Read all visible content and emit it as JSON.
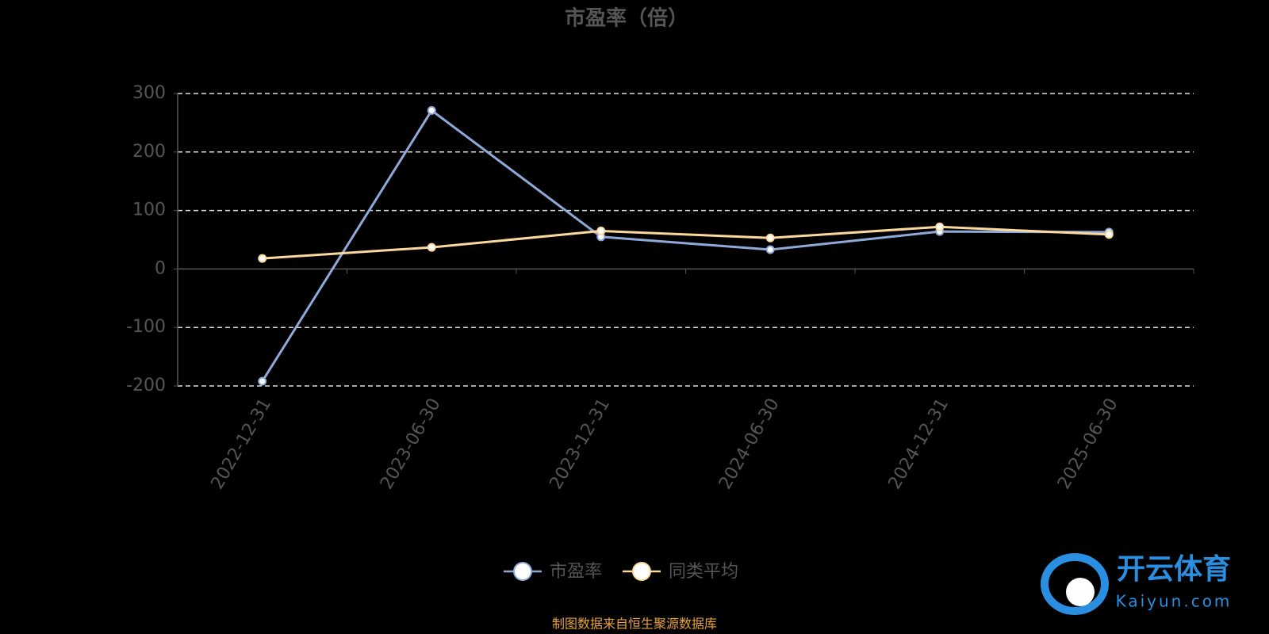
{
  "chart_data": {
    "type": "line",
    "title": "市盈率（倍）",
    "categories": [
      "2022-12-31",
      "2023-06-30",
      "2023-12-31",
      "2024-06-30",
      "2024-12-31",
      "2025-06-30"
    ],
    "series": [
      {
        "name": "市盈率",
        "color": "#8fa9d9",
        "values": [
          -192,
          271,
          55,
          33,
          64,
          63
        ]
      },
      {
        "name": "同类平均",
        "color": "#fbd89b",
        "values": [
          18,
          37,
          65,
          53,
          72,
          59
        ]
      }
    ],
    "ylim": [
      -200,
      300
    ],
    "yticks": [
      -200,
      -100,
      0,
      100,
      200,
      300
    ],
    "grid": true,
    "legend": "bottom",
    "source": "制图数据来自恒生聚源数据库",
    "watermark": {
      "name": "开云体育",
      "site": "Kaiyun.com"
    }
  }
}
